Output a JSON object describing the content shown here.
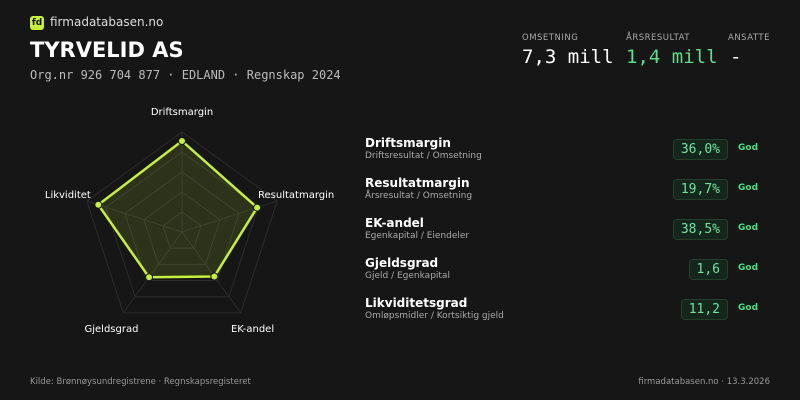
{
  "header": {
    "logo": "fd",
    "brand": "firmadatabasen.no",
    "title": "TYRVELID AS",
    "subtitle": "Org.nr 926 704 877 · EDLAND · Regnskap 2024"
  },
  "stats": [
    {
      "label": "OMSETNING",
      "value": "7,3 mill"
    },
    {
      "label": "ÅRSRESULTAT",
      "value": "1,4 mill"
    },
    {
      "label": "ANSATTE",
      "value": "-"
    }
  ],
  "chart_data": {
    "type": "radar",
    "categories": [
      "Driftsmargin",
      "Resultatmargin",
      "EK-andel",
      "Gjeldsgrad",
      "Likviditet"
    ],
    "values": [
      91,
      79,
      55,
      56,
      88
    ],
    "color": "#c8f03a",
    "rlim": [
      0,
      100
    ],
    "rticks": [
      20,
      40,
      60,
      80,
      100
    ]
  },
  "metrics": [
    {
      "name": "Driftsmargin",
      "description": "Driftsresultat / Omsetning",
      "value": "36,0%",
      "status": "God"
    },
    {
      "name": "Resultatmargin",
      "description": "Årsresultat / Omsetning",
      "value": "19,7%",
      "status": "God"
    },
    {
      "name": "EK-andel",
      "description": "Egenkapital / Eiendeler",
      "value": "38,5%",
      "status": "God"
    },
    {
      "name": "Gjeldsgrad",
      "description": "Gjeld / Egenkapital",
      "value": "1,6",
      "status": "God"
    },
    {
      "name": "Likviditetsgrad",
      "description": "Omløpsmidler / Kortsiktig gjeld",
      "value": "11,2",
      "status": "God"
    }
  ],
  "footer": {
    "source": "Kilde: Brønnøysundregistrene · Regnskapsregisteret",
    "site": "firmadatabasen.no · 13.3.2026"
  }
}
